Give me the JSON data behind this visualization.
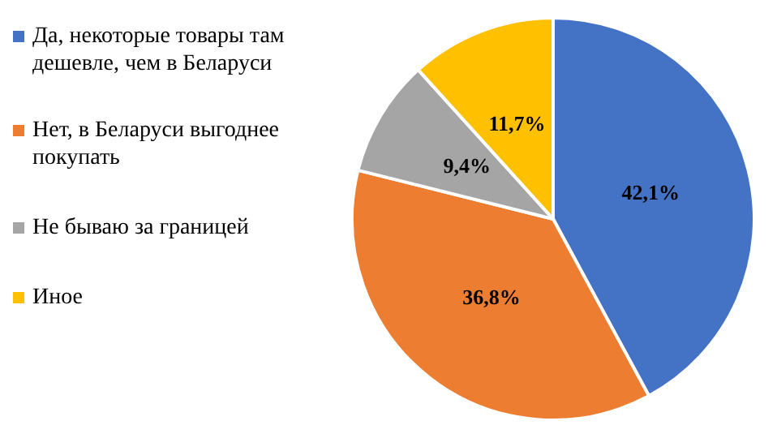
{
  "chart_data": {
    "type": "pie",
    "categories": [
      "Да, некоторые товары там дешевле, чем в Беларуси",
      "Нет, в Беларуси выгоднее покупать",
      "Не бываю за границей",
      "Иное"
    ],
    "values": [
      42.1,
      36.8,
      9.4,
      11.7
    ],
    "colors": [
      "#4472c4",
      "#ed7d31",
      "#a5a5a5",
      "#ffc000"
    ],
    "value_labels": [
      "42,1%",
      "36,8%",
      "9,4%",
      "11,7%"
    ],
    "legend": "left"
  }
}
